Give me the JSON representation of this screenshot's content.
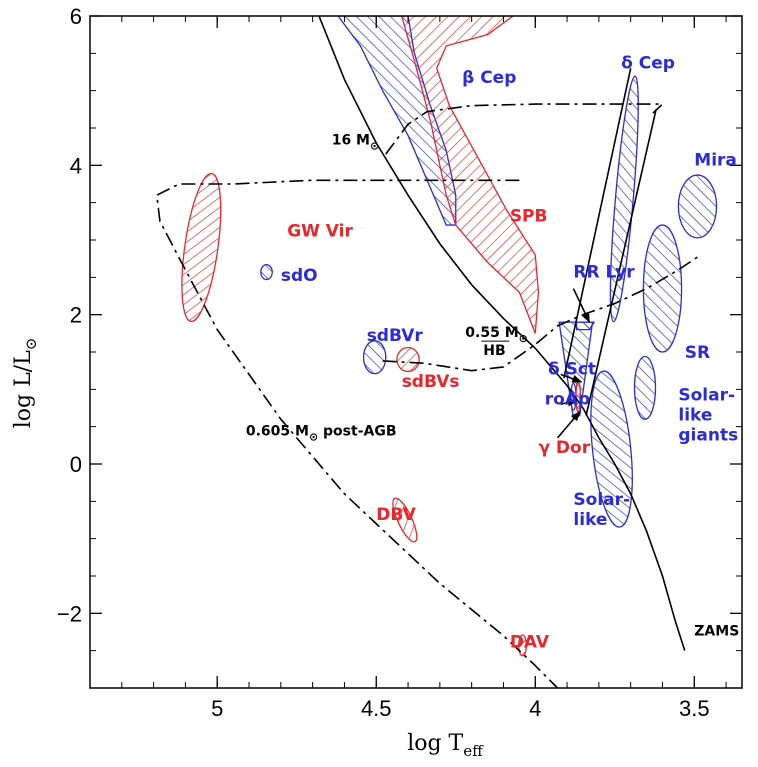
{
  "chart_data": {
    "type": "scatter",
    "title": "",
    "xlabel": "log T",
    "xlabel_sub": "eff",
    "ylabel": "log L/L",
    "ylabel_sub": "⊙",
    "xlim": [
      5.4,
      3.35
    ],
    "ylim": [
      -3,
      6
    ],
    "x_reversed": true,
    "xticks": [
      5,
      4.5,
      4,
      3.5
    ],
    "xtick_labels": [
      "5",
      "4.5",
      "4",
      "3.5"
    ],
    "yticks": [
      -2,
      0,
      2,
      4,
      6
    ],
    "ytick_labels": [
      "−2",
      "0",
      "2",
      "4",
      "6"
    ],
    "colors": {
      "red": "#e8262b",
      "blue": "#2b2bd9",
      "black": "#000000"
    },
    "regions": [
      {
        "name": "GW Vir",
        "color": "red",
        "hatch": "forward",
        "label_at": [
          4.78,
          3.05
        ],
        "shape": "ellipse",
        "center": [
          5.05,
          2.9
        ],
        "rx": 0.052,
        "ry": 1.0,
        "rot": 8
      },
      {
        "name": "sdO",
        "color": "blue",
        "hatch": "back",
        "label_at": [
          4.8,
          2.45
        ],
        "shape": "ellipse",
        "center": [
          4.845,
          2.57
        ],
        "rx": 0.018,
        "ry": 0.1,
        "rot": 0
      },
      {
        "name": "sdBVr",
        "color": "blue",
        "hatch": "back",
        "label_at": [
          4.53,
          1.65
        ],
        "shape": "ellipse",
        "center": [
          4.505,
          1.43
        ],
        "rx": 0.035,
        "ry": 0.22,
        "rot": 0
      },
      {
        "name": "sdBVs",
        "color": "red",
        "hatch": "forward",
        "label_at": [
          4.42,
          1.03
        ],
        "shape": "ellipse",
        "center": [
          4.4,
          1.4
        ],
        "rx": 0.035,
        "ry": 0.16,
        "rot": 0
      },
      {
        "name": "DBV",
        "color": "red",
        "hatch": "forward",
        "label_at": [
          4.5,
          -0.75
        ],
        "shape": "ellipse",
        "center": [
          4.41,
          -0.75
        ],
        "rx": 0.022,
        "ry": 0.32,
        "rot": -25
      },
      {
        "name": "DAV",
        "color": "red",
        "hatch": "forward",
        "label_at": [
          4.08,
          -2.46
        ],
        "shape": "ellipse",
        "center": [
          4.04,
          -2.43
        ],
        "rx": 0.012,
        "ry": 0.14,
        "rot": 0
      },
      {
        "name": "β Cep",
        "color": "blue",
        "hatch": "back",
        "label_at": [
          4.23,
          5.1
        ],
        "shape": "polygon",
        "points": [
          [
            4.62,
            6
          ],
          [
            4.55,
            5.6
          ],
          [
            4.48,
            5.0
          ],
          [
            4.4,
            4.4
          ],
          [
            4.34,
            3.8
          ],
          [
            4.28,
            3.2
          ],
          [
            4.25,
            3.2
          ],
          [
            4.25,
            3.6
          ],
          [
            4.28,
            4.2
          ],
          [
            4.33,
            4.8
          ],
          [
            4.38,
            5.5
          ],
          [
            4.4,
            6
          ]
        ]
      },
      {
        "name": "SPB",
        "color": "red",
        "hatch": "forward",
        "label_at": [
          4.08,
          3.25
        ],
        "shape": "polygon",
        "points": [
          [
            4.42,
            6
          ],
          [
            4.38,
            5.4
          ],
          [
            4.33,
            4.6
          ],
          [
            4.28,
            3.6
          ],
          [
            4.25,
            3.2
          ],
          [
            4.15,
            2.7
          ],
          [
            4.05,
            2.3
          ],
          [
            4.0,
            1.75
          ],
          [
            3.99,
            2.3
          ],
          [
            4.0,
            2.8
          ],
          [
            4.09,
            3.4
          ],
          [
            4.18,
            4.1
          ],
          [
            4.27,
            4.8
          ],
          [
            4.31,
            5.3
          ],
          [
            4.28,
            5.6
          ],
          [
            4.15,
            5.75
          ],
          [
            4.07,
            6
          ]
        ]
      },
      {
        "name": "δ Cep",
        "color": "blue",
        "hatch": "back",
        "label_at": [
          3.73,
          5.3
        ],
        "shape": "ellipse",
        "center": [
          3.72,
          3.55
        ],
        "rx": 0.028,
        "ry": 1.65,
        "rot": 5
      },
      {
        "name": "Mira",
        "color": "blue",
        "hatch": "back",
        "label_at": [
          3.5,
          4.0
        ],
        "shape": "ellipse",
        "center": [
          3.49,
          3.45
        ],
        "rx": 0.06,
        "ry": 0.42,
        "rot": 0
      },
      {
        "name": "SR",
        "color": "blue",
        "hatch": "back",
        "label_at": [
          3.53,
          1.42
        ],
        "shape": "ellipse",
        "center": [
          3.6,
          2.35
        ],
        "rx": 0.06,
        "ry": 0.85,
        "rot": 0
      },
      {
        "name": "Solar-like giants",
        "color": "blue",
        "hatch": "back",
        "label_at": [
          3.55,
          0.85
        ],
        "shape": "ellipse",
        "center": [
          3.655,
          1.02
        ],
        "rx": 0.033,
        "ry": 0.42,
        "rot": 0
      },
      {
        "name": "Solar-like",
        "color": "blue",
        "hatch": "back",
        "label_at": [
          3.88,
          -0.55
        ],
        "shape": "ellipse",
        "center": [
          3.76,
          0.2
        ],
        "rx": 0.06,
        "ry": 1.05,
        "rot": -6
      },
      {
        "name": "δ Sct",
        "color": "blue",
        "hatch": "back",
        "label_at": [
          3.96,
          1.2
        ],
        "shape": "polygon",
        "points": [
          [
            3.925,
            1.9
          ],
          [
            3.82,
            1.9
          ],
          [
            3.86,
            0.65
          ],
          [
            3.88,
            0.6
          ]
        ]
      },
      {
        "name": "RR Lyr",
        "color": "blue",
        "hatch": "back",
        "label_at": [
          3.88,
          2.5
        ],
        "shape": "polygon",
        "points": [
          [
            3.87,
            1.9
          ],
          [
            3.815,
            1.9
          ],
          [
            3.83,
            1.8
          ],
          [
            3.87,
            1.8
          ]
        ]
      },
      {
        "name": "roAp",
        "color": "blue",
        "hatch": "back",
        "label_at": [
          3.97,
          0.8
        ],
        "shape": "ellipse",
        "center": [
          3.88,
          0.9
        ],
        "rx": 0.008,
        "ry": 0.18,
        "rot": 0
      },
      {
        "name": "γ Dor",
        "color": "red",
        "hatch": "forward",
        "label_at": [
          3.99,
          0.15
        ],
        "shape": "ellipse",
        "center": [
          3.865,
          0.9
        ],
        "rx": 0.007,
        "ry": 0.2,
        "rot": 0
      }
    ],
    "lines": [
      {
        "name": "ZAMS",
        "style": "solid",
        "label_at": [
          3.5,
          -2.3
        ],
        "points": [
          [
            4.68,
            6.0
          ],
          [
            4.6,
            5.15
          ],
          [
            4.5,
            4.3
          ],
          [
            4.4,
            3.6
          ],
          [
            4.3,
            2.95
          ],
          [
            4.2,
            2.4
          ],
          [
            4.1,
            1.95
          ],
          [
            4.0,
            1.55
          ],
          [
            3.95,
            1.3
          ],
          [
            3.9,
            1.05
          ],
          [
            3.85,
            0.75
          ],
          [
            3.8,
            0.35
          ],
          [
            3.75,
            0.0
          ],
          [
            3.7,
            -0.4
          ],
          [
            3.65,
            -0.9
          ],
          [
            3.6,
            -1.5
          ],
          [
            3.56,
            -2.1
          ],
          [
            3.53,
            -2.5
          ]
        ]
      },
      {
        "name": "instability-strip-blue-edge",
        "style": "solid",
        "label_at": null,
        "points": [
          [
            3.91,
            1.15
          ],
          [
            3.7,
            5.3
          ]
        ]
      },
      {
        "name": "instability-strip-red-edge",
        "style": "solid",
        "label_at": null,
        "points": [
          [
            3.84,
            0.65
          ],
          [
            3.62,
            4.75
          ]
        ]
      },
      {
        "name": "16 Mo track",
        "label": "16 M",
        "label_sub": "⊙",
        "style": "dashdot",
        "label_at": [
          4.64,
          4.28
        ],
        "points": [
          [
            4.47,
            4.15
          ],
          [
            4.4,
            4.55
          ],
          [
            4.34,
            4.72
          ],
          [
            4.2,
            4.8
          ],
          [
            4.0,
            4.82
          ],
          [
            3.8,
            4.82
          ],
          [
            3.62,
            4.82
          ],
          [
            3.6,
            4.82
          ],
          [
            3.63,
            4.7
          ]
        ]
      },
      {
        "name": "0.55 Mo HB",
        "label": "0.55 M",
        "label_sub": "⊙",
        "label2": "HB",
        "style": "dashdot",
        "label_at": [
          4.22,
          1.7
        ],
        "points": [
          [
            4.48,
            1.38
          ],
          [
            4.35,
            1.35
          ],
          [
            4.2,
            1.25
          ],
          [
            4.1,
            1.3
          ],
          [
            4.0,
            1.6
          ],
          [
            3.93,
            1.85
          ],
          [
            3.85,
            2.0
          ],
          [
            3.75,
            2.15
          ],
          [
            3.65,
            2.35
          ],
          [
            3.55,
            2.6
          ],
          [
            3.48,
            2.8
          ]
        ]
      },
      {
        "name": "0.605 Mo post-AGB",
        "label": "0.605 M",
        "label_sub": "⊙",
        "label2": "post-AGB",
        "style": "dashdot",
        "label_at": [
          4.91,
          0.38
        ],
        "points": [
          [
            4.05,
            3.8
          ],
          [
            4.4,
            3.8
          ],
          [
            4.7,
            3.8
          ],
          [
            4.95,
            3.75
          ],
          [
            5.12,
            3.75
          ],
          [
            5.19,
            3.6
          ],
          [
            5.18,
            3.25
          ],
          [
            5.1,
            2.6
          ],
          [
            5.0,
            1.8
          ],
          [
            4.9,
            1.2
          ],
          [
            4.8,
            0.6
          ],
          [
            4.7,
            0.1
          ],
          [
            4.6,
            -0.4
          ],
          [
            4.5,
            -0.8
          ],
          [
            4.4,
            -1.2
          ],
          [
            4.3,
            -1.6
          ],
          [
            4.2,
            -1.95
          ],
          [
            4.1,
            -2.3
          ],
          [
            4.0,
            -2.7
          ],
          [
            3.93,
            -3.0
          ]
        ]
      }
    ],
    "arrows": [
      {
        "name": "RR Lyr",
        "from": [
          3.88,
          2.35
        ],
        "to": [
          3.83,
          1.9
        ]
      },
      {
        "name": "δ Sct",
        "from": [
          3.92,
          1.2
        ],
        "to": [
          3.855,
          1.1
        ]
      },
      {
        "name": "roAp",
        "from": [
          3.92,
          0.8
        ],
        "to": [
          3.87,
          0.85
        ]
      },
      {
        "name": "γ Dor",
        "from": [
          3.93,
          0.35
        ],
        "to": [
          3.86,
          0.7
        ]
      }
    ]
  }
}
